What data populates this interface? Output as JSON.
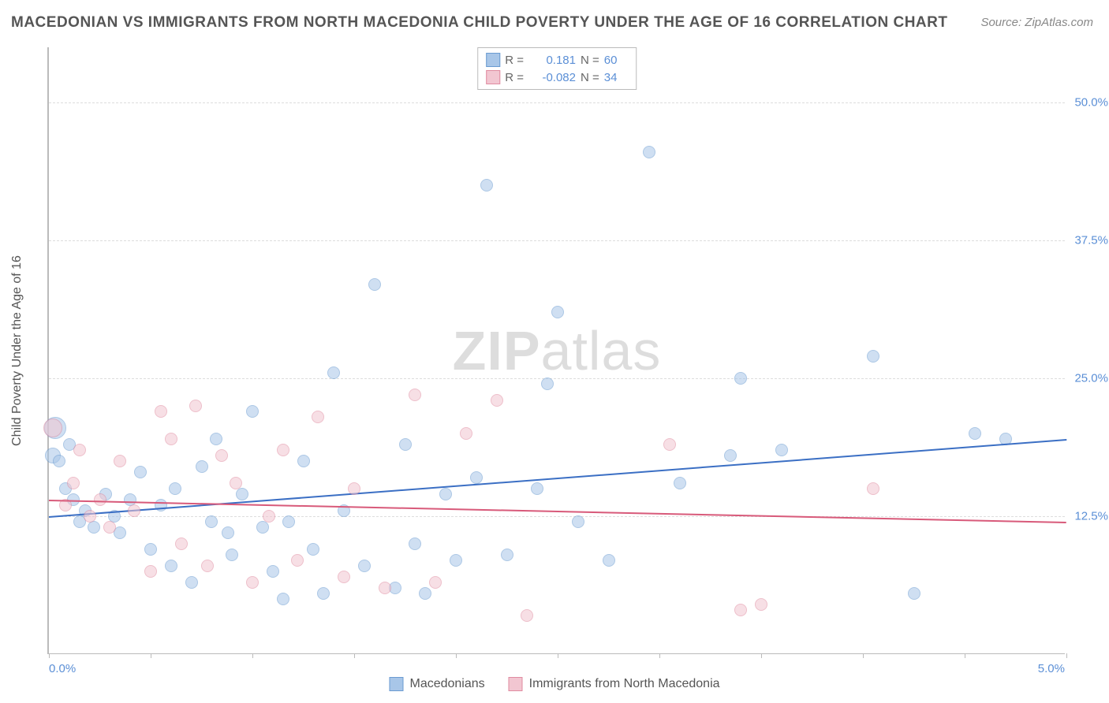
{
  "title": "MACEDONIAN VS IMMIGRANTS FROM NORTH MACEDONIA CHILD POVERTY UNDER THE AGE OF 16 CORRELATION CHART",
  "source": "Source: ZipAtlas.com",
  "y_axis_title": "Child Poverty Under the Age of 16",
  "x_left_label": "0.0%",
  "x_right_label": "5.0%",
  "watermark_bold": "ZIP",
  "watermark_light": "atlas",
  "chart": {
    "type": "scatter",
    "xlim": [
      0.0,
      5.0
    ],
    "ylim": [
      0.0,
      55.0
    ],
    "y_plot_min": 0.0,
    "y_plot_max": 55.0,
    "y_gridlines": [
      12.5,
      25.0,
      37.5,
      50.0
    ],
    "y_tick_labels": [
      "12.5%",
      "25.0%",
      "37.5%",
      "50.0%"
    ],
    "x_ticks": [
      0.0,
      0.5,
      1.0,
      1.5,
      2.0,
      2.5,
      3.0,
      3.5,
      4.0,
      4.5,
      5.0
    ],
    "background_color": "#ffffff",
    "grid_color": "#dddddd",
    "axis_color": "#bbbbbb",
    "point_radius": 8,
    "point_opacity": 0.55,
    "series": [
      {
        "name": "Macedonians",
        "color_fill": "#a8c6e8",
        "color_border": "#6a9bd1",
        "trend_color": "#3b6fc4",
        "R": "0.181",
        "N": "60",
        "trend": {
          "x1": 0.0,
          "y1": 12.5,
          "x2": 5.0,
          "y2": 19.5
        },
        "points": [
          {
            "x": 0.02,
            "y": 18.0,
            "r": 10
          },
          {
            "x": 0.03,
            "y": 20.5,
            "r": 14
          },
          {
            "x": 0.05,
            "y": 17.5
          },
          {
            "x": 0.08,
            "y": 15.0
          },
          {
            "x": 0.1,
            "y": 19.0
          },
          {
            "x": 0.12,
            "y": 14.0
          },
          {
            "x": 0.15,
            "y": 12.0
          },
          {
            "x": 0.18,
            "y": 13.0
          },
          {
            "x": 0.22,
            "y": 11.5
          },
          {
            "x": 0.28,
            "y": 14.5
          },
          {
            "x": 0.32,
            "y": 12.5
          },
          {
            "x": 0.35,
            "y": 11.0
          },
          {
            "x": 0.4,
            "y": 14.0
          },
          {
            "x": 0.45,
            "y": 16.5
          },
          {
            "x": 0.5,
            "y": 9.5
          },
          {
            "x": 0.55,
            "y": 13.5
          },
          {
            "x": 0.6,
            "y": 8.0
          },
          {
            "x": 0.62,
            "y": 15.0
          },
          {
            "x": 0.7,
            "y": 6.5
          },
          {
            "x": 0.75,
            "y": 17.0
          },
          {
            "x": 0.8,
            "y": 12.0
          },
          {
            "x": 0.82,
            "y": 19.5
          },
          {
            "x": 0.88,
            "y": 11.0
          },
          {
            "x": 0.9,
            "y": 9.0
          },
          {
            "x": 0.95,
            "y": 14.5
          },
          {
            "x": 1.0,
            "y": 22.0
          },
          {
            "x": 1.05,
            "y": 11.5
          },
          {
            "x": 1.1,
            "y": 7.5
          },
          {
            "x": 1.15,
            "y": 5.0
          },
          {
            "x": 1.18,
            "y": 12.0
          },
          {
            "x": 1.25,
            "y": 17.5
          },
          {
            "x": 1.3,
            "y": 9.5
          },
          {
            "x": 1.35,
            "y": 5.5
          },
          {
            "x": 1.4,
            "y": 25.5
          },
          {
            "x": 1.45,
            "y": 13.0
          },
          {
            "x": 1.55,
            "y": 8.0
          },
          {
            "x": 1.6,
            "y": 33.5
          },
          {
            "x": 1.7,
            "y": 6.0
          },
          {
            "x": 1.75,
            "y": 19.0
          },
          {
            "x": 1.8,
            "y": 10.0
          },
          {
            "x": 1.85,
            "y": 5.5
          },
          {
            "x": 1.95,
            "y": 14.5
          },
          {
            "x": 2.0,
            "y": 8.5
          },
          {
            "x": 2.1,
            "y": 16.0
          },
          {
            "x": 2.15,
            "y": 42.5
          },
          {
            "x": 2.25,
            "y": 9.0
          },
          {
            "x": 2.4,
            "y": 15.0
          },
          {
            "x": 2.45,
            "y": 24.5
          },
          {
            "x": 2.5,
            "y": 31.0
          },
          {
            "x": 2.6,
            "y": 12.0
          },
          {
            "x": 2.75,
            "y": 8.5
          },
          {
            "x": 2.95,
            "y": 45.5
          },
          {
            "x": 3.1,
            "y": 15.5
          },
          {
            "x": 3.35,
            "y": 18.0
          },
          {
            "x": 3.4,
            "y": 25.0
          },
          {
            "x": 3.6,
            "y": 18.5
          },
          {
            "x": 4.05,
            "y": 27.0
          },
          {
            "x": 4.25,
            "y": 5.5
          },
          {
            "x": 4.55,
            "y": 20.0
          },
          {
            "x": 4.7,
            "y": 19.5
          }
        ]
      },
      {
        "name": "Immigrants from North Macedonia",
        "color_fill": "#f2c6d1",
        "color_border": "#e08ba0",
        "trend_color": "#d85a7a",
        "R": "-0.082",
        "N": "34",
        "trend": {
          "x1": 0.0,
          "y1": 14.0,
          "x2": 5.0,
          "y2": 12.0
        },
        "points": [
          {
            "x": 0.02,
            "y": 20.5,
            "r": 12
          },
          {
            "x": 0.08,
            "y": 13.5
          },
          {
            "x": 0.12,
            "y": 15.5
          },
          {
            "x": 0.15,
            "y": 18.5
          },
          {
            "x": 0.2,
            "y": 12.5
          },
          {
            "x": 0.25,
            "y": 14.0
          },
          {
            "x": 0.3,
            "y": 11.5
          },
          {
            "x": 0.35,
            "y": 17.5
          },
          {
            "x": 0.42,
            "y": 13.0
          },
          {
            "x": 0.5,
            "y": 7.5
          },
          {
            "x": 0.55,
            "y": 22.0
          },
          {
            "x": 0.6,
            "y": 19.5
          },
          {
            "x": 0.65,
            "y": 10.0
          },
          {
            "x": 0.72,
            "y": 22.5
          },
          {
            "x": 0.78,
            "y": 8.0
          },
          {
            "x": 0.85,
            "y": 18.0
          },
          {
            "x": 0.92,
            "y": 15.5
          },
          {
            "x": 1.0,
            "y": 6.5
          },
          {
            "x": 1.08,
            "y": 12.5
          },
          {
            "x": 1.15,
            "y": 18.5
          },
          {
            "x": 1.22,
            "y": 8.5
          },
          {
            "x": 1.32,
            "y": 21.5
          },
          {
            "x": 1.45,
            "y": 7.0
          },
          {
            "x": 1.5,
            "y": 15.0
          },
          {
            "x": 1.65,
            "y": 6.0
          },
          {
            "x": 1.8,
            "y": 23.5
          },
          {
            "x": 1.9,
            "y": 6.5
          },
          {
            "x": 2.05,
            "y": 20.0
          },
          {
            "x": 2.2,
            "y": 23.0
          },
          {
            "x": 2.35,
            "y": 3.5
          },
          {
            "x": 3.05,
            "y": 19.0
          },
          {
            "x": 3.4,
            "y": 4.0
          },
          {
            "x": 3.5,
            "y": 4.5
          },
          {
            "x": 4.05,
            "y": 15.0
          }
        ]
      }
    ]
  },
  "legend": {
    "series1_label": "Macedonians",
    "series2_label": "Immigrants from North Macedonia",
    "r_label": "R =",
    "n_label": "N ="
  }
}
